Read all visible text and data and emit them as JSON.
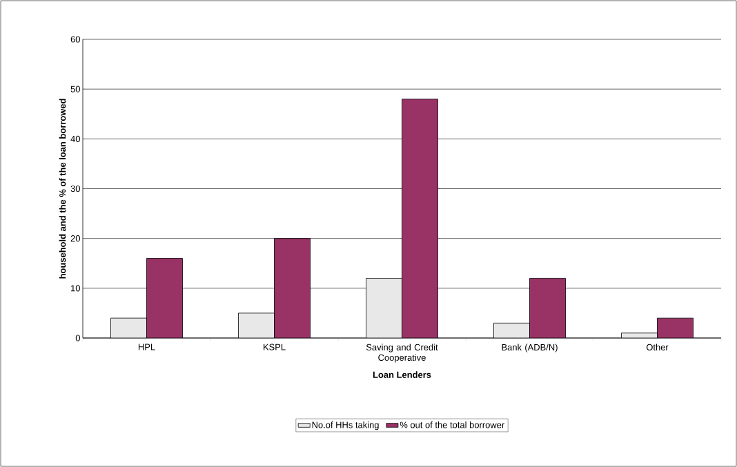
{
  "chart_data": {
    "type": "bar",
    "xlabel": "Loan Lenders",
    "ylabel": "household and the % of the loan borrowed",
    "categories": [
      "HPL",
      "KSPL",
      "Saving and Credit Cooperative",
      "Bank (ADB/N)",
      "Other"
    ],
    "series": [
      {
        "name": "No.of HHs taking",
        "color": "#e8e8e8",
        "values": [
          4,
          5,
          12,
          3,
          1
        ]
      },
      {
        "name": "% out of the total borrower",
        "color": "#993366",
        "values": [
          16,
          20,
          48,
          12,
          4
        ]
      }
    ],
    "ylim": [
      0,
      60
    ],
    "yticks": [
      0,
      10,
      20,
      30,
      40,
      50,
      60
    ],
    "grid": "y",
    "legend": "bottom"
  }
}
